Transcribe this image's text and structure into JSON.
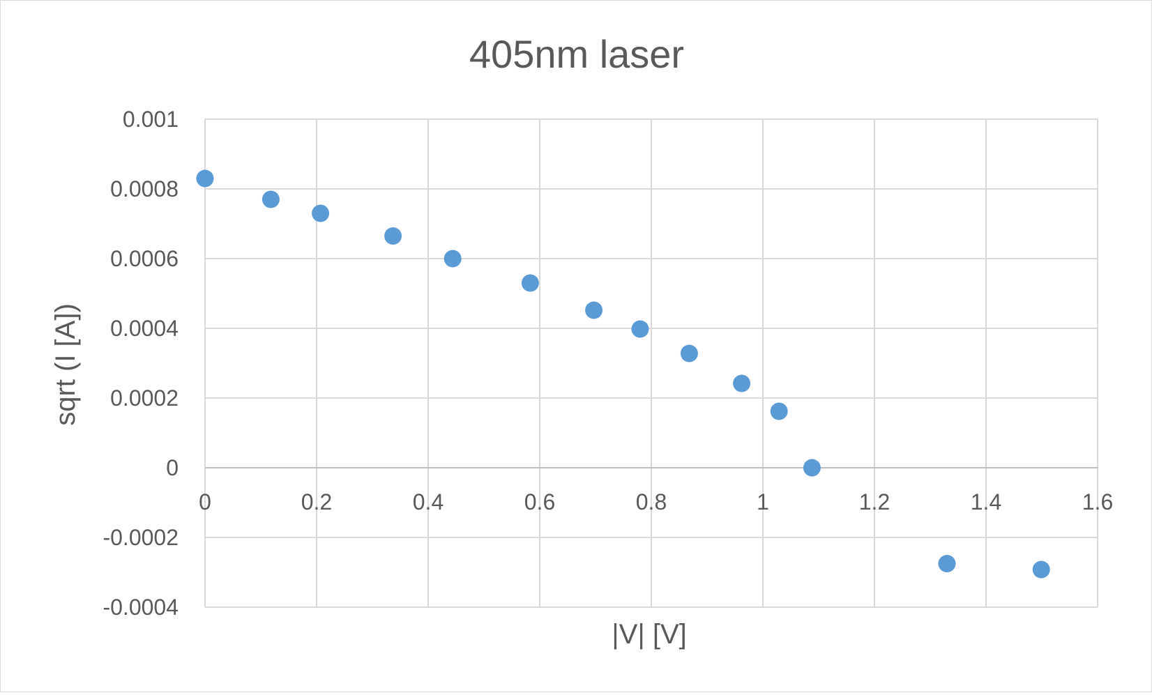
{
  "chart_data": {
    "type": "scatter",
    "title": "405nm laser",
    "xlabel": "|V| [V]",
    "ylabel": "sqrt (I [A])",
    "xlim": [
      0,
      1.6
    ],
    "ylim": [
      -0.0004,
      0.001
    ],
    "x_ticks": [
      "0",
      "0.2",
      "0.4",
      "0.6",
      "0.8",
      "1",
      "1.2",
      "1.4",
      "1.6"
    ],
    "y_ticks": [
      "-0.0004",
      "-0.0002",
      "0",
      "0.0002",
      "0.0004",
      "0.0006",
      "0.0008",
      "0.001"
    ],
    "grid": true,
    "legend": "none",
    "series": [
      {
        "color": "#5b9bd5",
        "points": [
          {
            "x": 0.0,
            "y": 0.00083
          },
          {
            "x": 0.118,
            "y": 0.00077
          },
          {
            "x": 0.207,
            "y": 0.00073
          },
          {
            "x": 0.337,
            "y": 0.000665
          },
          {
            "x": 0.444,
            "y": 0.0006
          },
          {
            "x": 0.583,
            "y": 0.00053
          },
          {
            "x": 0.697,
            "y": 0.000452
          },
          {
            "x": 0.78,
            "y": 0.000398
          },
          {
            "x": 0.868,
            "y": 0.000328
          },
          {
            "x": 0.962,
            "y": 0.000242
          },
          {
            "x": 1.029,
            "y": 0.000162
          },
          {
            "x": 1.088,
            "y": 0.0
          },
          {
            "x": 1.33,
            "y": -0.000275
          },
          {
            "x": 1.499,
            "y": -0.000292
          }
        ]
      }
    ]
  }
}
